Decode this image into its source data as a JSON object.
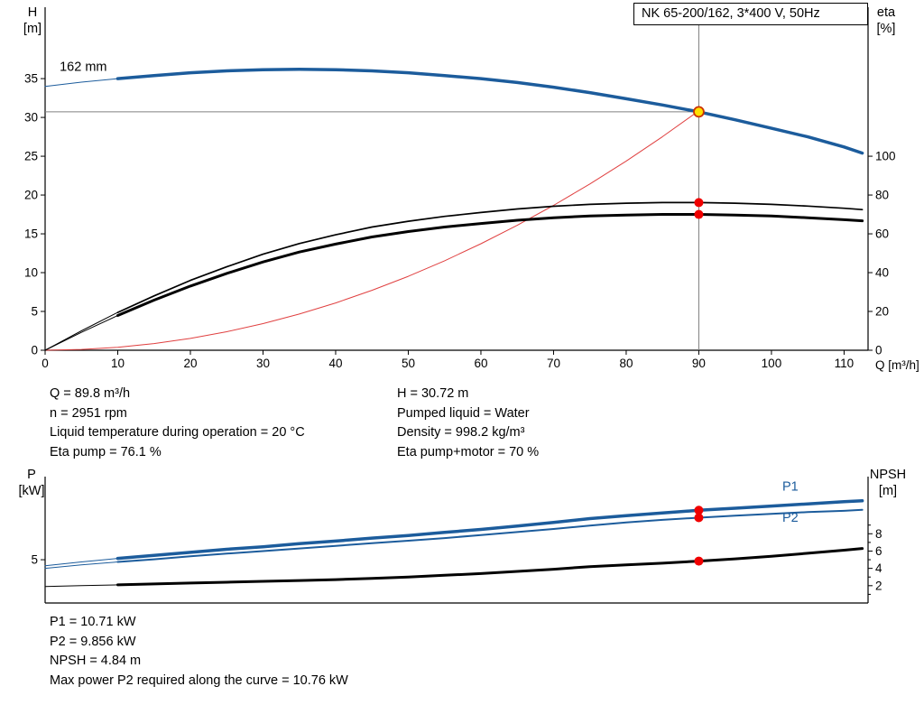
{
  "colors": {
    "curve_blue": "#1c5c9c",
    "curve_black": "#000000",
    "curve_red": "#e04040",
    "marker_red": "#f00000",
    "duty_fill": "#ffe000",
    "duty_stroke": "#cc3300",
    "crosshair": "#808080",
    "axis": "#000000"
  },
  "info_top": {
    "left": [
      "Q = 89.8 m³/h",
      "n = 2951 rpm",
      "Liquid temperature during operation = 20 °C",
      "Eta pump = 76.1 %"
    ],
    "right": [
      "H = 30.72 m",
      "Pumped liquid = Water",
      "Density = 998.2 kg/m³",
      "Eta pump+motor = 70 %"
    ]
  },
  "info_bottom": [
    "P1 = 10.71 kW",
    "P2 = 9.856 kW",
    "NPSH = 4.84 m",
    "Max power P2 required along the curve = 10.76 kW"
  ],
  "chart_data": [
    {
      "type": "line",
      "title": "NK 65-200/162, 3*400 V, 50Hz",
      "xlabel": "Q [m³/h]",
      "ylabel_left": [
        "H",
        "[m]"
      ],
      "ylabel_right": [
        "eta",
        "[%]"
      ],
      "xlim": [
        0,
        113.3
      ],
      "ylim_left": [
        0,
        44.2
      ],
      "ylim_right": [
        0,
        176.8
      ],
      "x_ticks": [
        0,
        10,
        20,
        30,
        40,
        50,
        60,
        70,
        80,
        90,
        100,
        110
      ],
      "y_ticks_left": [
        0,
        5,
        10,
        15,
        20,
        25,
        30,
        35
      ],
      "y_ticks_right": [
        0,
        20,
        40,
        60,
        80,
        100
      ],
      "grid": false,
      "crosshair": {
        "x": 90,
        "y": 30.72
      },
      "series": [
        {
          "name": "affinity-parabola",
          "axis": "left",
          "color": "#e04040",
          "width": 1,
          "x": [
            0,
            5,
            10,
            15,
            20,
            25,
            30,
            35,
            40,
            45,
            50,
            55,
            60,
            65,
            70,
            75,
            80,
            85,
            89.8
          ],
          "y": [
            0,
            0.1,
            0.38,
            0.86,
            1.52,
            2.38,
            3.43,
            4.67,
            6.1,
            7.72,
            9.53,
            11.53,
            13.72,
            16.1,
            18.67,
            21.43,
            24.38,
            27.52,
            30.72
          ]
        },
        {
          "name": "eta-pump-curve",
          "axis": "right",
          "color": "#000000",
          "width": 1.7,
          "thin_until": 10,
          "x": [
            0,
            5,
            10,
            15,
            20,
            25,
            30,
            35,
            40,
            45,
            50,
            55,
            60,
            65,
            70,
            75,
            80,
            85,
            90,
            95,
            100,
            105,
            110,
            112.5
          ],
          "y": [
            0,
            10,
            19.5,
            28,
            36,
            43,
            49.5,
            55,
            59.5,
            63.5,
            66.5,
            69,
            71,
            72.8,
            74.2,
            75.2,
            75.8,
            76.1,
            76.1,
            75.8,
            75.2,
            74.3,
            73.2,
            72.5
          ]
        },
        {
          "name": "eta-pump-motor-curve",
          "axis": "right",
          "color": "#000000",
          "width": 3,
          "thin_until": 10,
          "x": [
            0,
            5,
            10,
            15,
            20,
            25,
            30,
            35,
            40,
            45,
            50,
            55,
            60,
            65,
            70,
            75,
            80,
            85,
            90,
            95,
            100,
            105,
            110,
            112.5
          ],
          "y": [
            0,
            9.2,
            17.9,
            25.8,
            33.1,
            39.6,
            45.5,
            50.6,
            54.7,
            58.4,
            61.2,
            63.5,
            65.3,
            67,
            68.3,
            69.2,
            69.7,
            70,
            70,
            69.7,
            69.2,
            68.3,
            67.3,
            66.7
          ]
        },
        {
          "name": "pump-curve-162mm",
          "label": "162 mm",
          "axis": "left",
          "color": "#1c5c9c",
          "width": 3.5,
          "thin_until": 10,
          "x": [
            0,
            5,
            10,
            15,
            20,
            25,
            30,
            35,
            40,
            45,
            50,
            55,
            60,
            65,
            70,
            75,
            80,
            85,
            90,
            95,
            100,
            105,
            110,
            112.5
          ],
          "y": [
            34,
            34.55,
            35,
            35.4,
            35.75,
            36,
            36.15,
            36.2,
            36.15,
            36,
            35.75,
            35.4,
            35,
            34.5,
            33.9,
            33.2,
            32.4,
            31.6,
            30.72,
            29.7,
            28.6,
            27.5,
            26.2,
            25.4
          ]
        }
      ],
      "annotations": [
        {
          "text": "162 mm",
          "x": 2,
          "y": 36,
          "axis": "left",
          "color": "#000000",
          "size": 14.5
        }
      ],
      "markers": [
        {
          "name": "duty-point",
          "x": 90,
          "y": 30.72,
          "axis": "left",
          "r": 5.5,
          "fill": "#ffe000",
          "stroke": "#cc3300"
        },
        {
          "name": "eta-pump-point",
          "x": 90,
          "y": 76.1,
          "axis": "right",
          "r": 5,
          "fill": "#f00000"
        },
        {
          "name": "eta-pump-motor-point",
          "x": 90,
          "y": 70,
          "axis": "right",
          "r": 5,
          "fill": "#f00000"
        }
      ]
    },
    {
      "type": "line",
      "title": "",
      "xlabel": "",
      "ylabel_left": [
        "P",
        "[kW]"
      ],
      "ylabel_right": [
        "NPSH",
        "[m]"
      ],
      "xlim": [
        0,
        113.3
      ],
      "ylim_left": [
        0,
        14.6
      ],
      "ylim_right": [
        0,
        14.6
      ],
      "x_ticks": [],
      "y_ticks_left": [
        5
      ],
      "y_ticks_right": [
        2,
        4,
        6,
        8
      ],
      "y_minor_right": [
        1,
        3,
        5,
        7,
        9
      ],
      "grid": false,
      "series": [
        {
          "name": "p1-curve",
          "label": "P1",
          "axis": "left",
          "color": "#1c5c9c",
          "width": 3.5,
          "thin_until": 10,
          "x": [
            0,
            5,
            10,
            15,
            20,
            25,
            30,
            35,
            40,
            45,
            50,
            55,
            60,
            65,
            70,
            75,
            80,
            85,
            90,
            95,
            100,
            105,
            110,
            112.5
          ],
          "y": [
            4.3,
            4.75,
            5.15,
            5.5,
            5.85,
            6.2,
            6.5,
            6.85,
            7.15,
            7.5,
            7.8,
            8.15,
            8.5,
            8.9,
            9.3,
            9.75,
            10.1,
            10.4,
            10.71,
            10.95,
            11.2,
            11.45,
            11.7,
            11.8
          ]
        },
        {
          "name": "p2-curve",
          "label": "P2",
          "axis": "left",
          "color": "#1c5c9c",
          "width": 2,
          "thin_until": 10,
          "x": [
            0,
            5,
            10,
            15,
            20,
            25,
            30,
            35,
            40,
            45,
            50,
            55,
            60,
            65,
            70,
            75,
            80,
            85,
            90,
            95,
            100,
            105,
            110,
            112.5
          ],
          "y": [
            4.0,
            4.4,
            4.75,
            5.05,
            5.4,
            5.7,
            6.0,
            6.3,
            6.6,
            6.9,
            7.2,
            7.5,
            7.85,
            8.2,
            8.55,
            8.95,
            9.3,
            9.6,
            9.856,
            10.1,
            10.3,
            10.5,
            10.65,
            10.76
          ]
        },
        {
          "name": "npsh-curve",
          "axis": "right",
          "color": "#000000",
          "width": 3,
          "thin_until": 10,
          "x": [
            0,
            5,
            10,
            15,
            20,
            25,
            30,
            35,
            40,
            45,
            50,
            55,
            60,
            65,
            70,
            75,
            80,
            85,
            90,
            95,
            100,
            105,
            110,
            112.5
          ],
          "y": [
            1.9,
            2.0,
            2.1,
            2.2,
            2.3,
            2.4,
            2.5,
            2.6,
            2.7,
            2.85,
            3.0,
            3.2,
            3.4,
            3.65,
            3.9,
            4.2,
            4.4,
            4.6,
            4.84,
            5.1,
            5.4,
            5.75,
            6.1,
            6.3
          ]
        }
      ],
      "annotations": [
        {
          "text": "P1",
          "x": 101.5,
          "y": 13.0,
          "axis": "left",
          "color": "#1c5c9c",
          "size": 14.5
        },
        {
          "text": "P2",
          "x": 101.5,
          "y": 9.4,
          "axis": "left",
          "color": "#1c5c9c",
          "size": 14.5
        }
      ],
      "markers": [
        {
          "name": "p1-point",
          "x": 90,
          "y": 10.71,
          "axis": "left",
          "r": 5,
          "fill": "#f00000"
        },
        {
          "name": "p2-point",
          "x": 90,
          "y": 9.856,
          "axis": "left",
          "r": 5,
          "fill": "#f00000"
        },
        {
          "name": "npsh-point",
          "x": 90,
          "y": 4.84,
          "axis": "right",
          "r": 5,
          "fill": "#f00000"
        }
      ]
    }
  ]
}
